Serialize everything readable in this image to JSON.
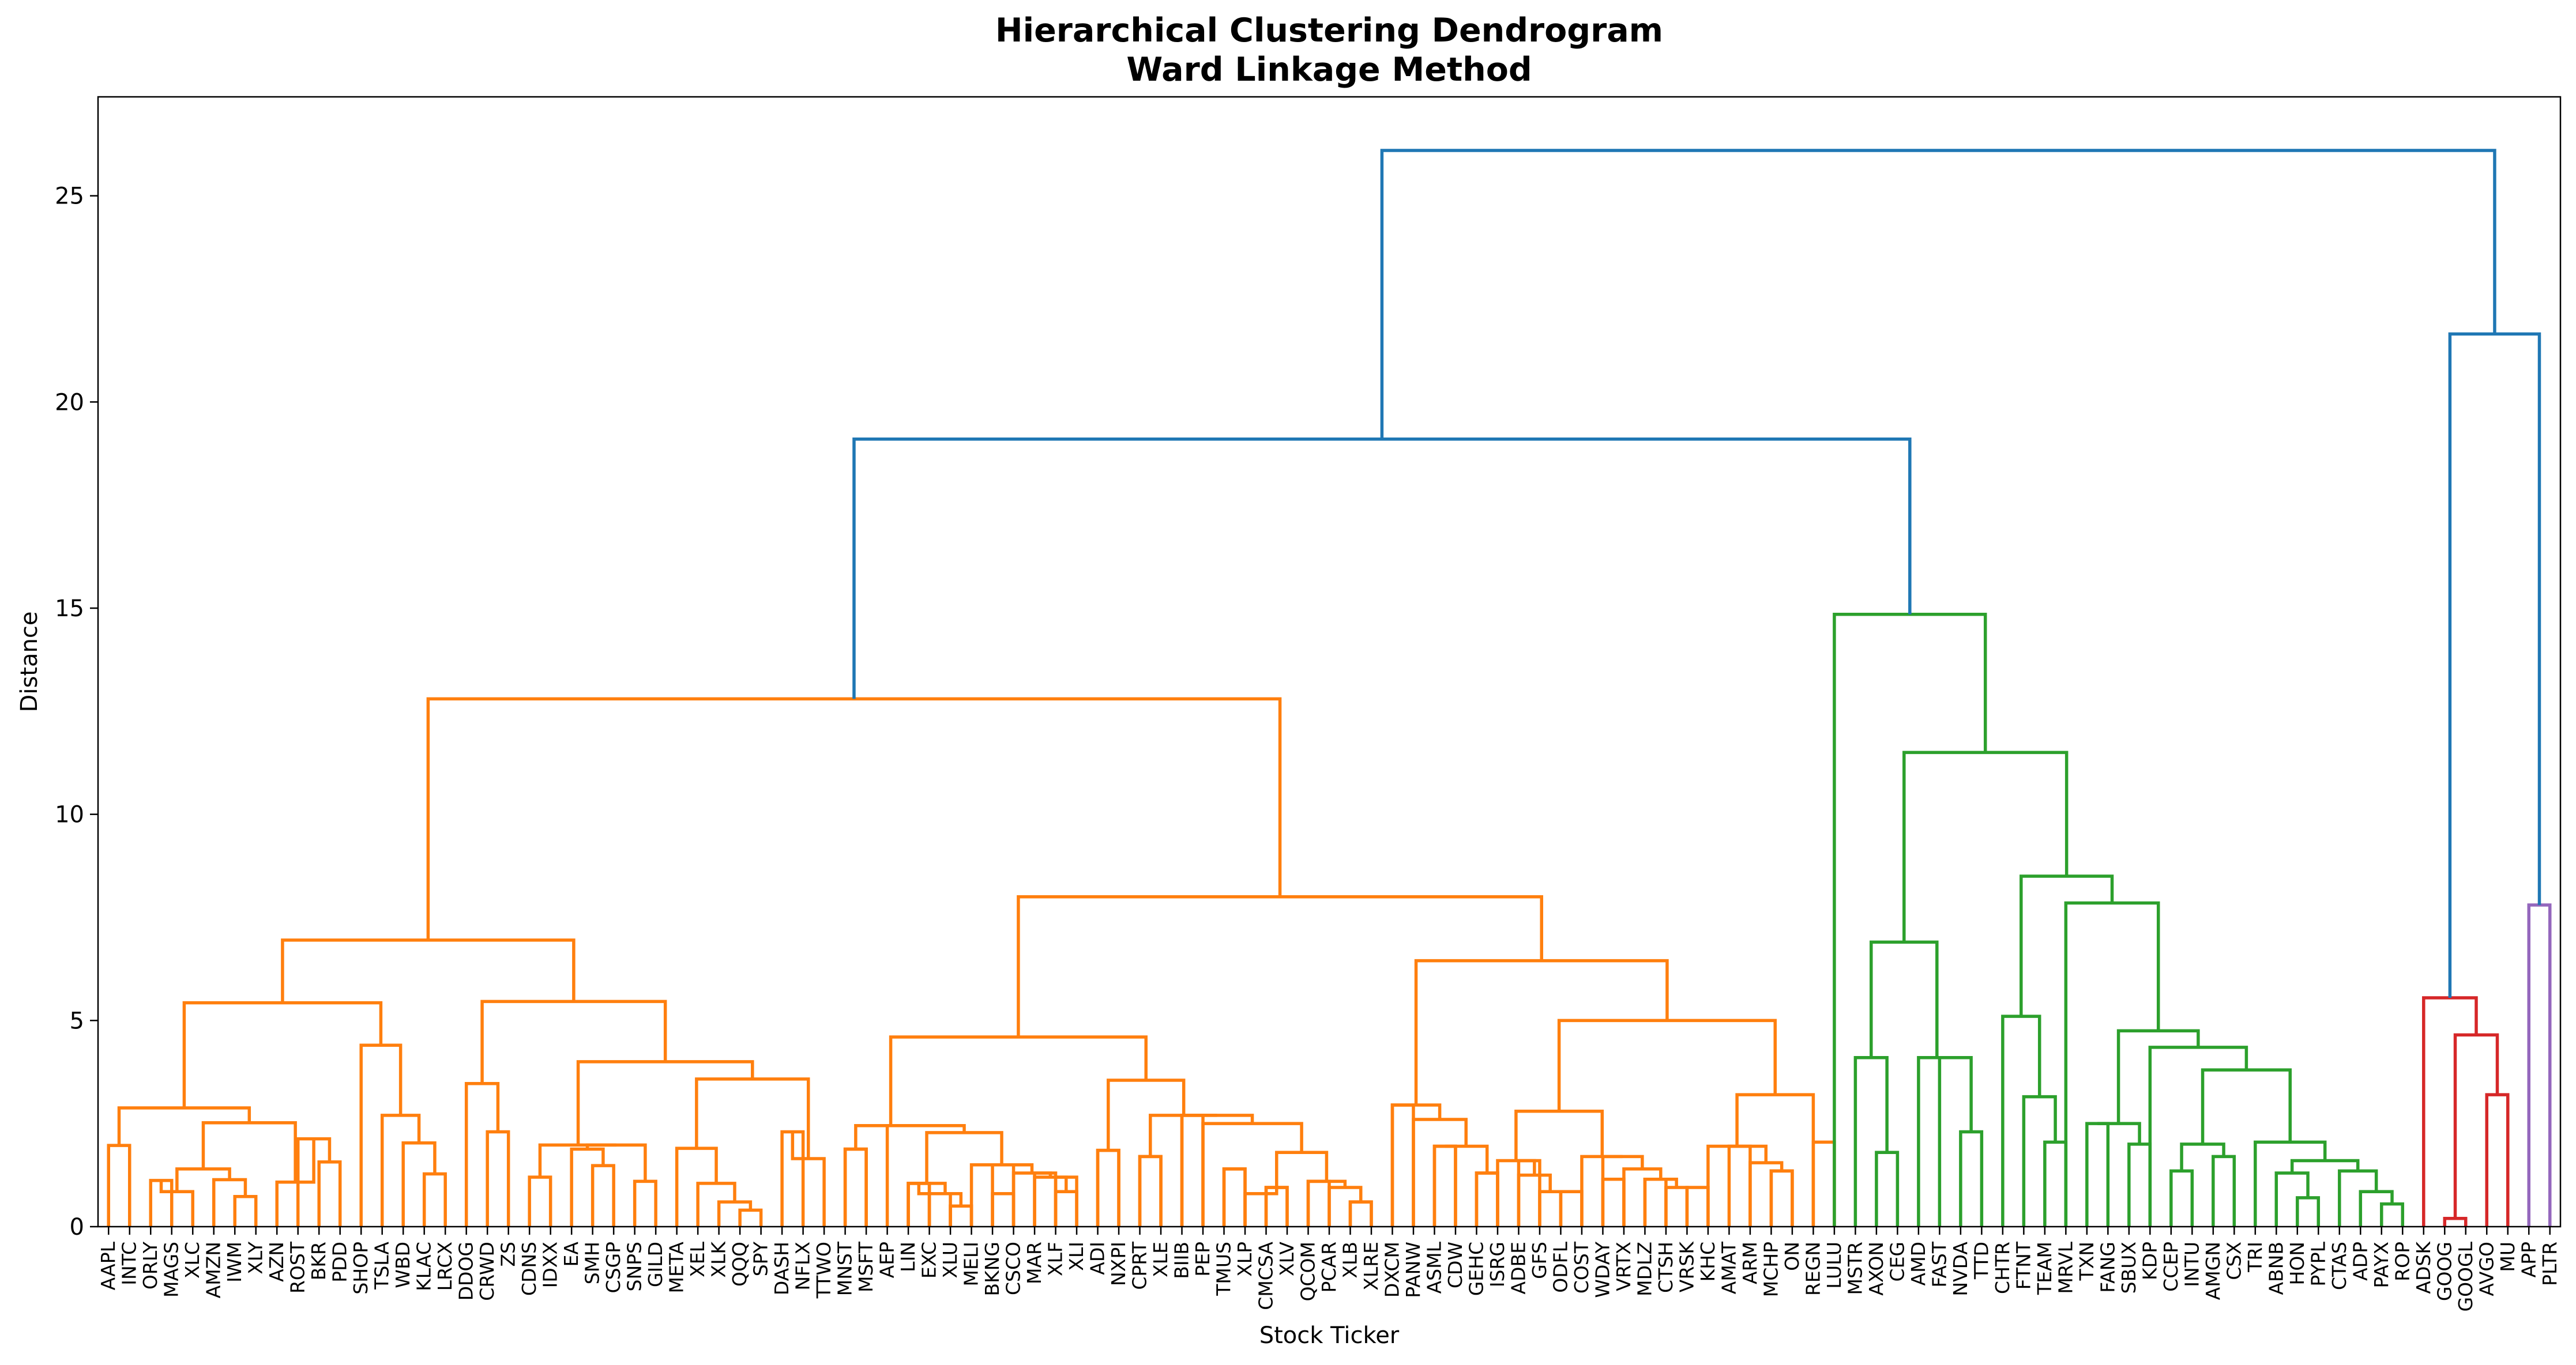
{
  "chart_data": {
    "type": "dendrogram",
    "title": "Hierarchical Clustering Dendrogram",
    "subtitle": "Ward Linkage Method",
    "xlabel": "Stock Ticker",
    "ylabel": "Distance",
    "ylim": [
      0,
      27.4
    ],
    "yticks": [
      0,
      5,
      10,
      15,
      20,
      25
    ],
    "grid": false,
    "colors": {
      "C1": "#ff7f0e",
      "C2": "#2ca02c",
      "C3": "#d62728",
      "C4": "#9467bd",
      "C0": "#1f77b4"
    },
    "leaves": [
      "AAPL",
      "INTC",
      "ORLY",
      "MAGS",
      "XLC",
      "AMZN",
      "IWM",
      "XLY",
      "AZN",
      "ROST",
      "BKR",
      "PDD",
      "SHOP",
      "TSLA",
      "WBD",
      "KLAC",
      "LRCX",
      "DDOG",
      "CRWD",
      "ZS",
      "CDNS",
      "IDXX",
      "EA",
      "SMH",
      "CSGP",
      "SNPS",
      "GILD",
      "META",
      "XEL",
      "XLK",
      "QQQ",
      "SPY",
      "DASH",
      "NFLX",
      "TTWO",
      "MNST",
      "MSFT",
      "AEP",
      "LIN",
      "EXC",
      "XLU",
      "MELI",
      "BKNG",
      "CSCO",
      "MAR",
      "XLF",
      "XLI",
      "ADI",
      "NXPI",
      "CPRT",
      "XLE",
      "BIIB",
      "PEP",
      "TMUS",
      "XLP",
      "CMCSA",
      "XLV",
      "QCOM",
      "PCAR",
      "XLB",
      "XLRE",
      "DXCM",
      "PANW",
      "ASML",
      "CDW",
      "GEHC",
      "ISRG",
      "ADBE",
      "GFS",
      "ODFL",
      "COST",
      "WDAY",
      "VRTX",
      "MDLZ",
      "CTSH",
      "VRSK",
      "KHC",
      "AMAT",
      "ARM",
      "MCHP",
      "ON",
      "REGN",
      "LULU",
      "MSTR",
      "AXON",
      "CEG",
      "AMD",
      "FAST",
      "NVDA",
      "TTD",
      "CHTR",
      "FTNT",
      "TEAM",
      "MRVL",
      "TXN",
      "FANG",
      "SBUX",
      "KDP",
      "CCEP",
      "INTU",
      "AMGN",
      "CSX",
      "TRI",
      "ABNB",
      "HON",
      "PYPL",
      "CTAS",
      "ADP",
      "PAYX",
      "ROP",
      "ADSK",
      "GOOG",
      "GOOGL",
      "AVGO",
      "MU",
      "APP",
      "PLTR"
    ],
    "merges": [
      {
        "a": "AAPL",
        "b": "INTC",
        "h": 1.97,
        "c": "C1",
        "id": "n1"
      },
      {
        "a": "ORLY",
        "b": "MAGS",
        "h": 1.12,
        "c": "C1",
        "id": "n2"
      },
      {
        "a": "n2",
        "b": "XLC",
        "h": 0.85,
        "c": "C1",
        "id": "n3"
      },
      {
        "a": "IWM",
        "b": "XLY",
        "h": 0.73,
        "c": "C1",
        "id": "n4"
      },
      {
        "a": "AMZN",
        "b": "n4",
        "h": 1.14,
        "c": "C1",
        "id": "n5"
      },
      {
        "a": "n3",
        "b": "n5",
        "h": 1.4,
        "c": "C1",
        "id": "n6"
      },
      {
        "a": "BKR",
        "b": "PDD",
        "h": 1.57,
        "c": "C1",
        "id": "n7"
      },
      {
        "a": "ROST",
        "b": "n7",
        "h": 2.13,
        "c": "C1",
        "id": "n8"
      },
      {
        "a": "AZN",
        "b": "n8",
        "h": 1.08,
        "c": "C1",
        "id": "n9"
      },
      {
        "a": "n6",
        "b": "n9",
        "h": 2.52,
        "c": "C1",
        "id": "n10"
      },
      {
        "a": "n1",
        "b": "n10",
        "h": 2.88,
        "c": "C1",
        "id": "n11"
      },
      {
        "a": "KLAC",
        "b": "LRCX",
        "h": 1.28,
        "c": "C1",
        "id": "n12"
      },
      {
        "a": "WBD",
        "b": "n12",
        "h": 2.03,
        "c": "C1",
        "id": "n13"
      },
      {
        "a": "TSLA",
        "b": "n13",
        "h": 2.7,
        "c": "C1",
        "id": "n14"
      },
      {
        "a": "SHOP",
        "b": "n14",
        "h": 4.4,
        "c": "C1",
        "id": "n15"
      },
      {
        "a": "n11",
        "b": "n15",
        "h": 5.43,
        "c": "C1",
        "id": "n16"
      },
      {
        "a": "CRWD",
        "b": "ZS",
        "h": 2.3,
        "c": "C1",
        "id": "n17"
      },
      {
        "a": "DDOG",
        "b": "n17",
        "h": 3.47,
        "c": "C1",
        "id": "n18"
      },
      {
        "a": "SMH",
        "b": "CSGP",
        "h": 1.48,
        "c": "C1",
        "id": "n19"
      },
      {
        "a": "EA",
        "b": "n19",
        "h": 1.88,
        "c": "C1",
        "id": "n20"
      },
      {
        "a": "SNPS",
        "b": "GILD",
        "h": 1.1,
        "c": "C1",
        "id": "n21"
      },
      {
        "a": "n20",
        "b": "n21",
        "h": 1.98,
        "c": "C1",
        "id": "n22"
      },
      {
        "a": "CDNS",
        "b": "IDXX",
        "h": 1.2,
        "c": "C1",
        "id": "n23"
      },
      {
        "a": "n23",
        "b": "n22",
        "h": 1.98,
        "c": "C1",
        "id": "n24"
      },
      {
        "a": "QQQ",
        "b": "SPY",
        "h": 0.4,
        "c": "C1",
        "id": "n25"
      },
      {
        "a": "XLK",
        "b": "n25",
        "h": 0.6,
        "c": "C1",
        "id": "n26"
      },
      {
        "a": "XEL",
        "b": "n26",
        "h": 1.05,
        "c": "C1",
        "id": "n27"
      },
      {
        "a": "META",
        "b": "n27",
        "h": 1.9,
        "c": "C1",
        "id": "n28"
      },
      {
        "a": "DASH",
        "b": "NFLX",
        "h": 2.3,
        "c": "C1",
        "id": "n29"
      },
      {
        "a": "n29",
        "b": "TTWO",
        "h": 1.65,
        "c": "C1",
        "id": "n30"
      },
      {
        "a": "n28",
        "b": "n30",
        "h": 3.58,
        "c": "C1",
        "id": "n31"
      },
      {
        "a": "n24",
        "b": "n31",
        "h": 4.0,
        "c": "C1",
        "id": "n32"
      },
      {
        "a": "n18",
        "b": "n32",
        "h": 5.46,
        "c": "C1",
        "id": "n33"
      },
      {
        "a": "n16",
        "b": "n33",
        "h": 6.95,
        "c": "C1",
        "id": "n34"
      },
      {
        "a": "MNST",
        "b": "MSFT",
        "h": 1.88,
        "c": "C1",
        "id": "n35"
      },
      {
        "a": "LIN",
        "b": "EXC",
        "h": 1.05,
        "c": "C1",
        "id": "n36"
      },
      {
        "a": "n36",
        "b": "XLU",
        "h": 0.8,
        "c": "C1",
        "id": "n37"
      },
      {
        "a": "XLU",
        "b": "MELI",
        "h": 0.5,
        "c": "C1",
        "id": "n38"
      },
      {
        "a": "BKNG",
        "b": "CSCO",
        "h": 1.5,
        "c": "C1",
        "id": "n39"
      },
      {
        "a": "MAR",
        "b": "XLF",
        "h": 1.3,
        "c": "C1",
        "id": "n40"
      },
      {
        "a": "XLF",
        "b": "XLI",
        "h": 1.2,
        "c": "C1",
        "id": "n41"
      },
      {
        "a": "ADI",
        "b": "NXPI",
        "h": 1.85,
        "c": "C1",
        "id": "n42"
      },
      {
        "a": "CPRT",
        "b": "XLE",
        "h": 1.7,
        "c": "C1",
        "id": "n43"
      },
      {
        "a": "BIIB",
        "b": "PEP",
        "h": 2.7,
        "c": "C1",
        "id": "n44"
      },
      {
        "a": "TMUS",
        "b": "XLP",
        "h": 1.4,
        "c": "C1",
        "id": "n45"
      },
      {
        "a": "CMCSA",
        "b": "XLV",
        "h": 0.95,
        "c": "C1",
        "id": "n46"
      },
      {
        "a": "QCOM",
        "b": "PCAR",
        "h": 1.1,
        "c": "C1",
        "id": "n47"
      },
      {
        "a": "XLB",
        "b": "XLRE",
        "h": 0.6,
        "c": "C1",
        "id": "n48"
      },
      {
        "a": "DXCM",
        "b": "PANW",
        "h": 2.95,
        "c": "C1",
        "id": "n49"
      },
      {
        "a": "ASML",
        "b": "CDW",
        "h": 1.95,
        "c": "C1",
        "id": "n50"
      },
      {
        "a": "GEHC",
        "b": "ISRG",
        "h": 1.3,
        "c": "C1",
        "id": "n51"
      },
      {
        "a": "ADBE",
        "b": "GFS",
        "h": 1.6,
        "c": "C1",
        "id": "n52"
      },
      {
        "a": "ODFL",
        "b": "COST",
        "h": 0.85,
        "c": "C1",
        "id": "n53"
      },
      {
        "a": "WDAY",
        "b": "VRTX",
        "h": 1.15,
        "c": "C1",
        "id": "n54"
      },
      {
        "a": "MDLZ",
        "b": "CTSH",
        "h": 1.15,
        "c": "C1",
        "id": "n55"
      },
      {
        "a": "VRSK",
        "b": "KHC",
        "h": 0.95,
        "c": "C1",
        "id": "n56"
      },
      {
        "a": "AMAT",
        "b": "ARM",
        "h": 1.95,
        "c": "C1",
        "id": "n57"
      },
      {
        "a": "MCHP",
        "b": "ON",
        "h": 1.35,
        "c": "C1",
        "id": "n58"
      },
      {
        "a": "REGN",
        "b": "LULU",
        "h": 2.05,
        "c": "C1",
        "id": "n59"
      }
    ]
  }
}
